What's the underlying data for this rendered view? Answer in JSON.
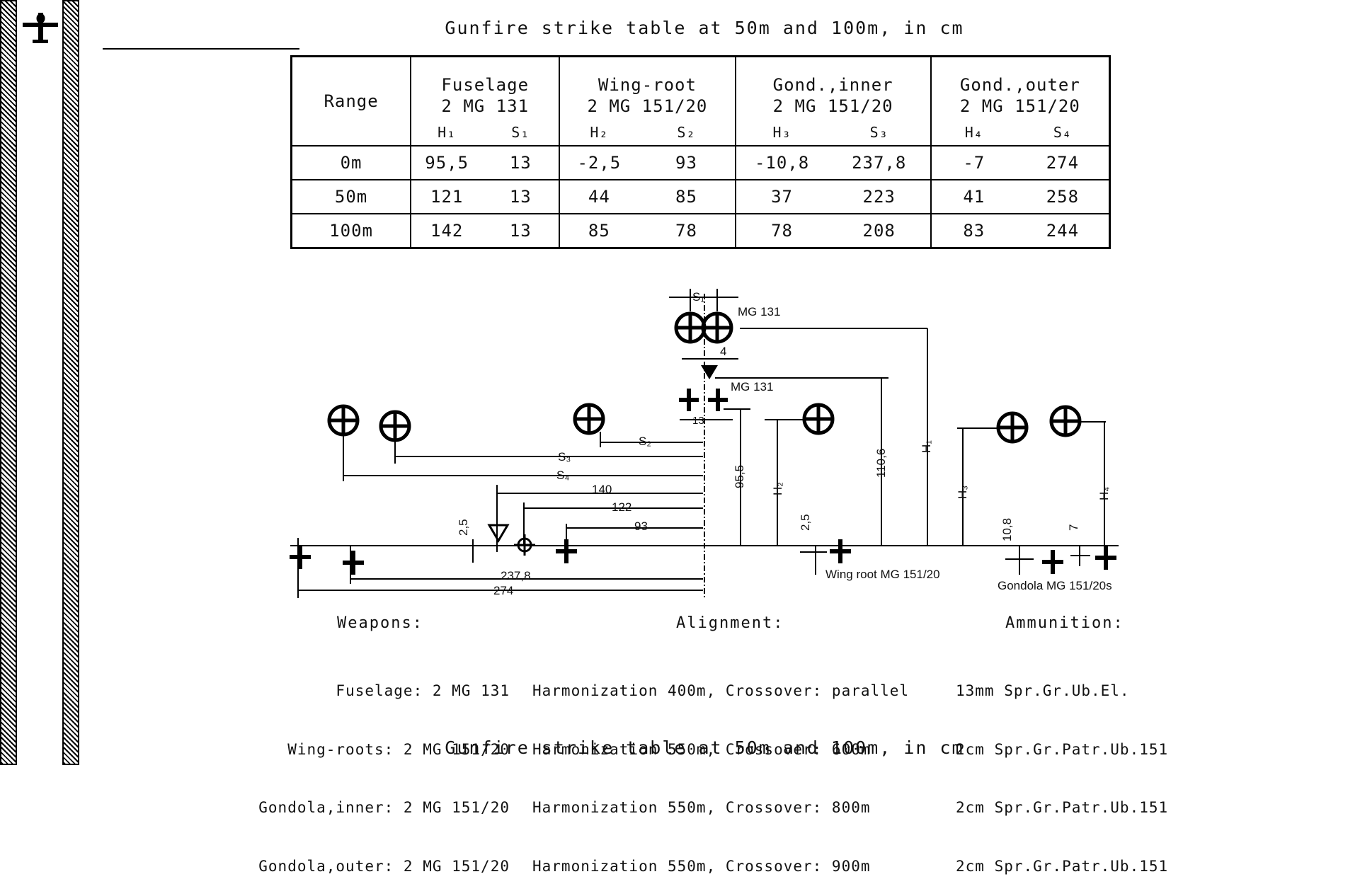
{
  "title_top": "Gunfire strike table at 50m and 100m, in cm",
  "title_bottom": "Gunfire strike table at 50m and 100m, in cm",
  "table": {
    "range_label": "Range",
    "groups": [
      {
        "line1": "Fuselage",
        "line2": "2 MG 131",
        "h": "H₁",
        "s": "S₁"
      },
      {
        "line1": "Wing-root",
        "line2": "2 MG 151/20",
        "h": "H₂",
        "s": "S₂"
      },
      {
        "line1": "Gond.,inner",
        "line2": "2 MG 151/20",
        "h": "H₃",
        "s": "S₃"
      },
      {
        "line1": "Gond.,outer",
        "line2": "2 MG 151/20",
        "h": "H₄",
        "s": "S₄"
      }
    ],
    "rows": [
      {
        "range": "0m",
        "values": [
          "95,5",
          "13",
          "-2,5",
          "93",
          "-10,8",
          "237,8",
          "-7",
          "274"
        ]
      },
      {
        "range": "50m",
        "values": [
          "121",
          "13",
          "44",
          "85",
          "37",
          "223",
          "41",
          "258"
        ]
      },
      {
        "range": "100m",
        "values": [
          "142",
          "13",
          "85",
          "78",
          "78",
          "208",
          "83",
          "244"
        ]
      }
    ]
  },
  "diagram": {
    "s1": "S₁",
    "s2": "S₂",
    "s3": "S₃",
    "s4": "S₄",
    "h1": "H₁",
    "h2": "H₂",
    "h3": "H₃",
    "h4": "H₄",
    "mg131_top": "MG 131",
    "mg131_mid": "MG 131",
    "dim_4": "4",
    "dim_13": "13",
    "dim_140": "140",
    "dim_122": "122",
    "dim_93": "93",
    "dim_2_5_left": "2,5",
    "dim_2_5_right": "2,5",
    "dim_95_5": "95,5",
    "dim_110_6": "110,6",
    "dim_10_8": "10,8",
    "dim_7": "7",
    "dim_237_8": "237,8",
    "dim_274": "274",
    "wing_root_label": "Wing root  MG 151/20",
    "gondola_label": "Gondola  MG 151/20s"
  },
  "weapons": {
    "heading": "Weapons:",
    "lines": [
      "Fuselage: 2 MG 131",
      "Wing-roots: 2 MG 151/20",
      "Gondola,inner: 2 MG 151/20",
      "Gondola,outer: 2 MG 151/20"
    ]
  },
  "alignment": {
    "heading": "Alignment:",
    "lines": [
      "Harmonization 400m, Crossover: parallel",
      "Harmonization 550m, Crossover: 600m",
      "Harmonization 550m, Crossover: 800m",
      "Harmonization 550m, Crossover: 900m"
    ]
  },
  "ammunition": {
    "heading": "Ammunition:",
    "lines": [
      "13mm Spr.Gr.Ub.El.",
      "2cm Spr.Gr.Patr.Ub.151",
      "2cm Spr.Gr.Patr.Ub.151",
      "2cm Spr.Gr.Patr.Ub.151"
    ]
  },
  "icons": {
    "logo": "aircraft-silhouette-icon"
  }
}
